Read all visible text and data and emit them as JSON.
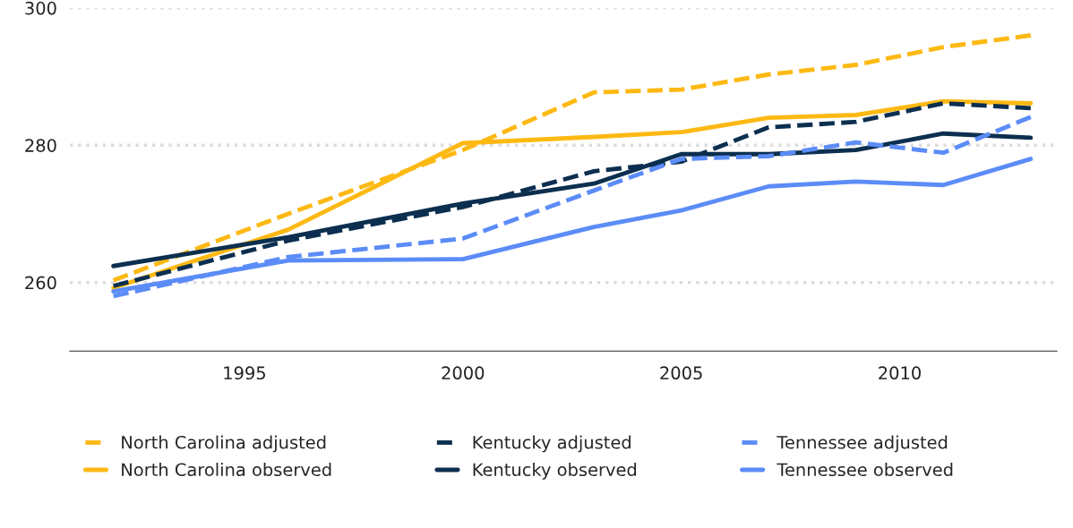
{
  "chart_data": {
    "type": "line",
    "x": [
      1992,
      1996,
      2000,
      2003,
      2005,
      2007,
      2009,
      2011,
      2013
    ],
    "xlim": [
      1991,
      2013.6
    ],
    "xticks": [
      1995,
      2000,
      2005,
      2010
    ],
    "ylim": [
      250,
      300
    ],
    "yticks": [
      260,
      280,
      300
    ],
    "grid": "y",
    "legend": "bottom",
    "series": [
      {
        "name": "North Carolina adjusted",
        "color": "#fdb913",
        "line_style": "dashed",
        "values": [
          260.3,
          270.0,
          279.3,
          287.7,
          288.1,
          290.3,
          291.7,
          294.3,
          296.0
        ]
      },
      {
        "name": "North Carolina observed",
        "color": "#fdb913",
        "line_style": "solid",
        "values": [
          259.2,
          267.7,
          280.3,
          281.2,
          281.9,
          284.0,
          284.4,
          286.4,
          286.1
        ]
      },
      {
        "name": "Kentucky adjusted",
        "color": "#0c2f4f",
        "line_style": "dashed",
        "values": [
          259.5,
          266.1,
          271.0,
          276.2,
          277.6,
          282.6,
          283.4,
          286.1,
          285.4
        ]
      },
      {
        "name": "Kentucky observed",
        "color": "#0c2f4f",
        "line_style": "solid",
        "values": [
          262.4,
          266.6,
          271.5,
          274.4,
          278.7,
          278.7,
          279.3,
          281.7,
          281.1
        ]
      },
      {
        "name": "Tennessee adjusted",
        "color": "#5b8cf7",
        "line_style": "dashed",
        "values": [
          258.0,
          263.7,
          266.4,
          273.4,
          278.0,
          278.4,
          280.4,
          278.9,
          284.1
        ]
      },
      {
        "name": "Tennessee observed",
        "color": "#5b8cf7",
        "line_style": "solid",
        "values": [
          258.7,
          263.2,
          263.4,
          268.1,
          270.5,
          274.0,
          274.7,
          274.2,
          278.0
        ]
      }
    ]
  }
}
